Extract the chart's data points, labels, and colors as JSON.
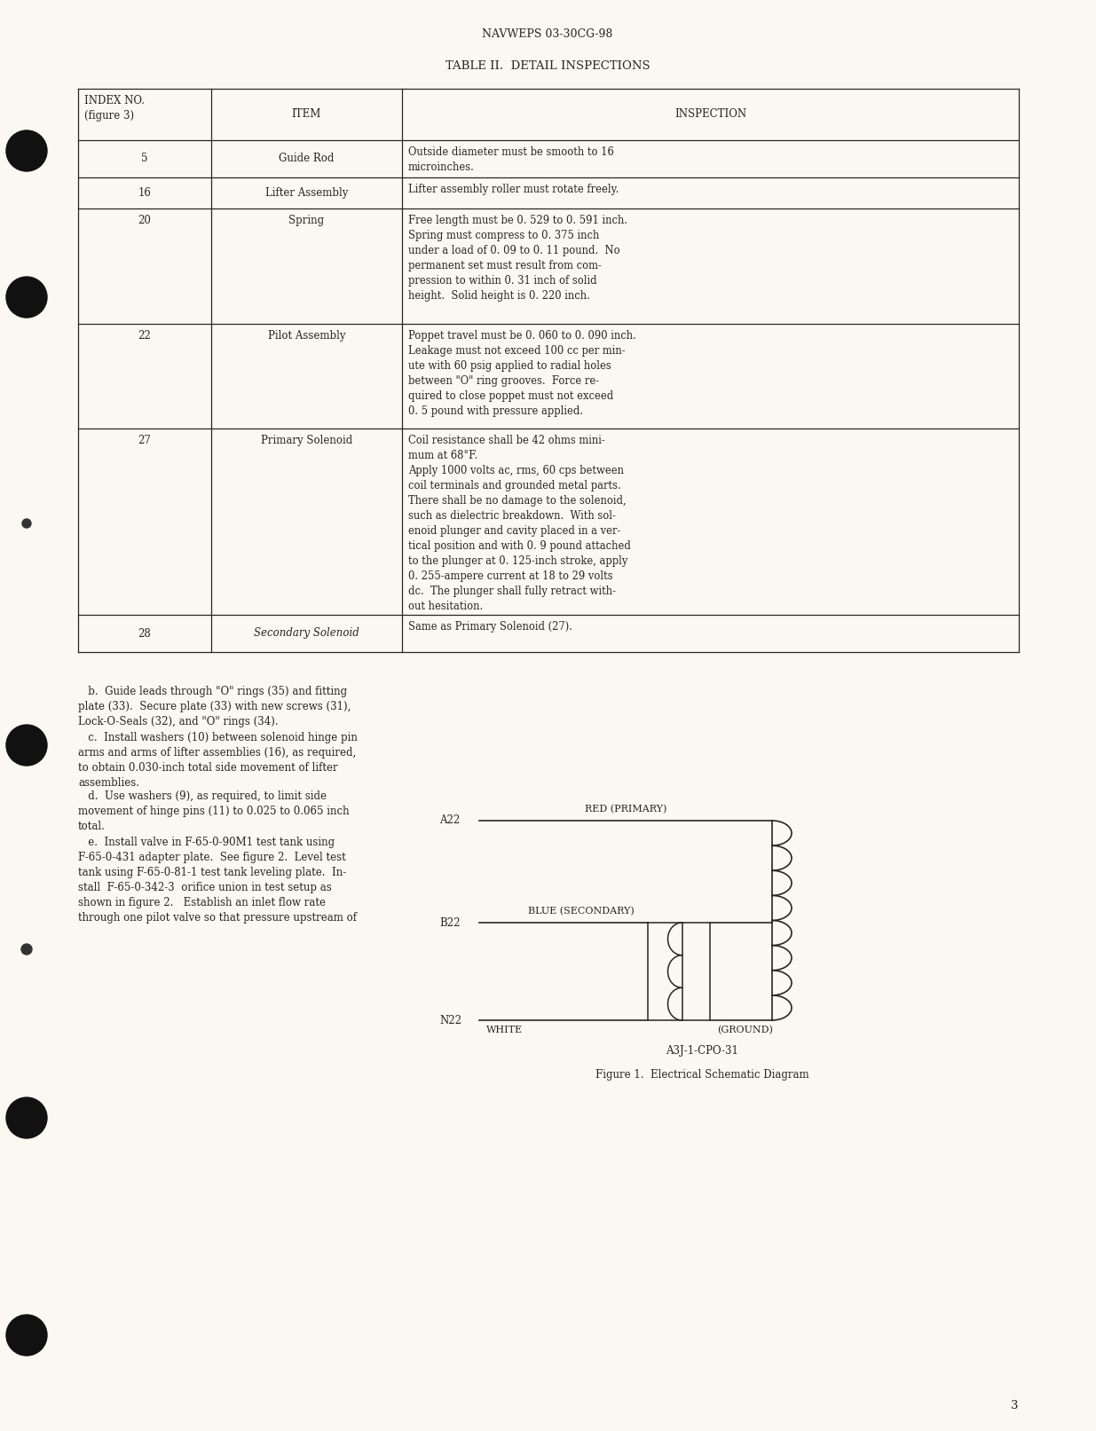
{
  "page_header": "NAVWEPS 03-30CG-98",
  "table_title": "TABLE II.  DETAIL INSPECTIONS",
  "col_headers": [
    "INDEX NO.\n(figure 3)",
    "ITEM",
    "INSPECTION"
  ],
  "table_rows": [
    {
      "index": "5",
      "item": "Guide Rod",
      "inspection": "Outside diameter must be smooth to 16\nmicroinches."
    },
    {
      "index": "16",
      "item": "Lifter Assembly",
      "inspection": "Lifter assembly roller must rotate freely."
    },
    {
      "index": "20",
      "item": "Spring",
      "inspection": "Free length must be 0. 529 to 0. 591 inch.\nSpring must compress to 0. 375 inch\nunder a load of 0. 09 to 0. 11 pound.  No\npermanent set must result from com-\npression to within 0. 31 inch of solid\nheight.  Solid height is 0. 220 inch."
    },
    {
      "index": "22",
      "item": "Pilot Assembly",
      "inspection": "Poppet travel must be 0. 060 to 0. 090 inch.\nLeakage must not exceed 100 cc per min-\nute with 60 psig applied to radial holes\nbetween \"O\" ring grooves.  Force re-\nquired to close poppet must not exceed\n0. 5 pound with pressure applied."
    },
    {
      "index": "27",
      "item": "Primary Solenoid",
      "inspection": "Coil resistance shall be 42 ohms mini-\nmum at 68°F.\nApply 1000 volts ac, rms, 60 cps between\ncoil terminals and grounded metal parts.\nThere shall be no damage to the solenoid,\nsuch as dielectric breakdown.  With sol-\nenoid plunger and cavity placed in a ver-\ntical position and with 0. 9 pound attached\nto the plunger at 0. 125-inch stroke, apply\n0. 255-ampere current at 18 to 29 volts\ndc.  The plunger shall fully retract with-\nout hesitation."
    },
    {
      "index": "28",
      "item": "Secondary Solenoid",
      "item_italic": true,
      "inspection": "Same as Primary Solenoid (27)."
    }
  ],
  "body_text_b": "   b.  Guide leads through \"O\" rings (35) and fitting\nplate (33).  Secure plate (33) with new screws (31),\nLock-O-Seals (32), and \"O\" rings (34).",
  "body_text_c": "   c.  Install washers (10) between solenoid hinge pin\narms and arms of lifter assemblies (16), as required,\nto obtain 0.030-inch total side movement of lifter\nassemblies.",
  "body_text_d": "   d.  Use washers (9), as required, to limit side\nmovement of hinge pins (11) to 0.025 to 0.065 inch\ntotal.",
  "body_text_e": "   e.  Install valve in F-65-0-90M1 test tank using\nF-65-0-431 adapter plate.  See figure 2.  Level test\ntank using F-65-0-81-1 test tank leveling plate.  In-\nstall  F-65-0-342-3  orifice union in test setup as\nshown in figure 2.   Establish an inlet flow rate\nthrough one pilot valve so that pressure upstream of",
  "diagram_ref": "A3J-1-CPO-31",
  "diagram_caption": "Figure 1.  Electrical Schematic Diagram",
  "page_number": "3",
  "bg_color": "#faf8f0",
  "text_color": "#2a2520",
  "line_color": "#2a2520"
}
